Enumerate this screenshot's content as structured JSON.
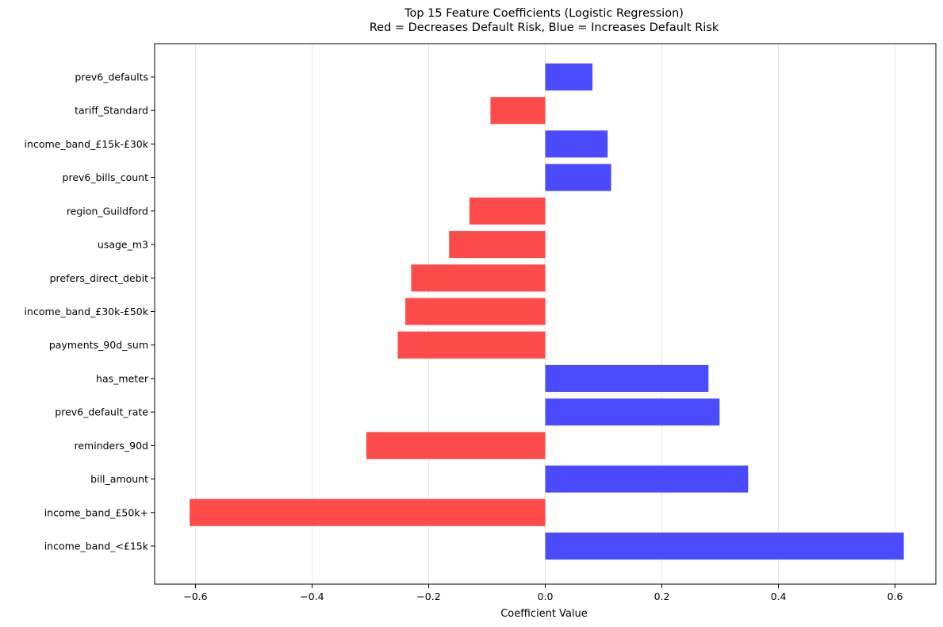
{
  "chart_data": {
    "type": "bar",
    "orientation": "horizontal",
    "title": "Top 15 Feature Coefficients (Logistic Regression)",
    "subtitle": "Red = Decreases Default Risk, Blue = Increases Default Risk",
    "xlabel": "Coefficient Value",
    "ylabel": "",
    "xlim": [
      -0.67,
      0.67
    ],
    "xticks": [
      -0.6,
      -0.4,
      -0.2,
      0.0,
      0.2,
      0.4,
      0.6
    ],
    "xtick_labels": [
      "−0.6",
      "−0.4",
      "−0.2",
      "0.0",
      "0.2",
      "0.4",
      "0.6"
    ],
    "grid": "x-axis vertical lines",
    "colors": {
      "negative": "#ff4a4a",
      "positive": "#4a4aff",
      "grid": "#e6e6e6",
      "axis": "#000000"
    },
    "categories": [
      "prev6_defaults",
      "tariff_Standard",
      "income_band_£15k-£30k",
      "prev6_bills_count",
      "region_Guildford",
      "usage_m3",
      "prefers_direct_debit",
      "income_band_£30k-£50k",
      "payments_90d_sum",
      "has_meter",
      "prev6_default_rate",
      "reminders_90d",
      "bill_amount",
      "income_band_£50k+",
      "income_band_<£15k"
    ],
    "values": [
      0.081,
      -0.094,
      0.107,
      0.113,
      -0.13,
      -0.165,
      -0.23,
      -0.24,
      -0.253,
      0.28,
      0.299,
      -0.307,
      0.348,
      -0.61,
      0.615
    ]
  }
}
